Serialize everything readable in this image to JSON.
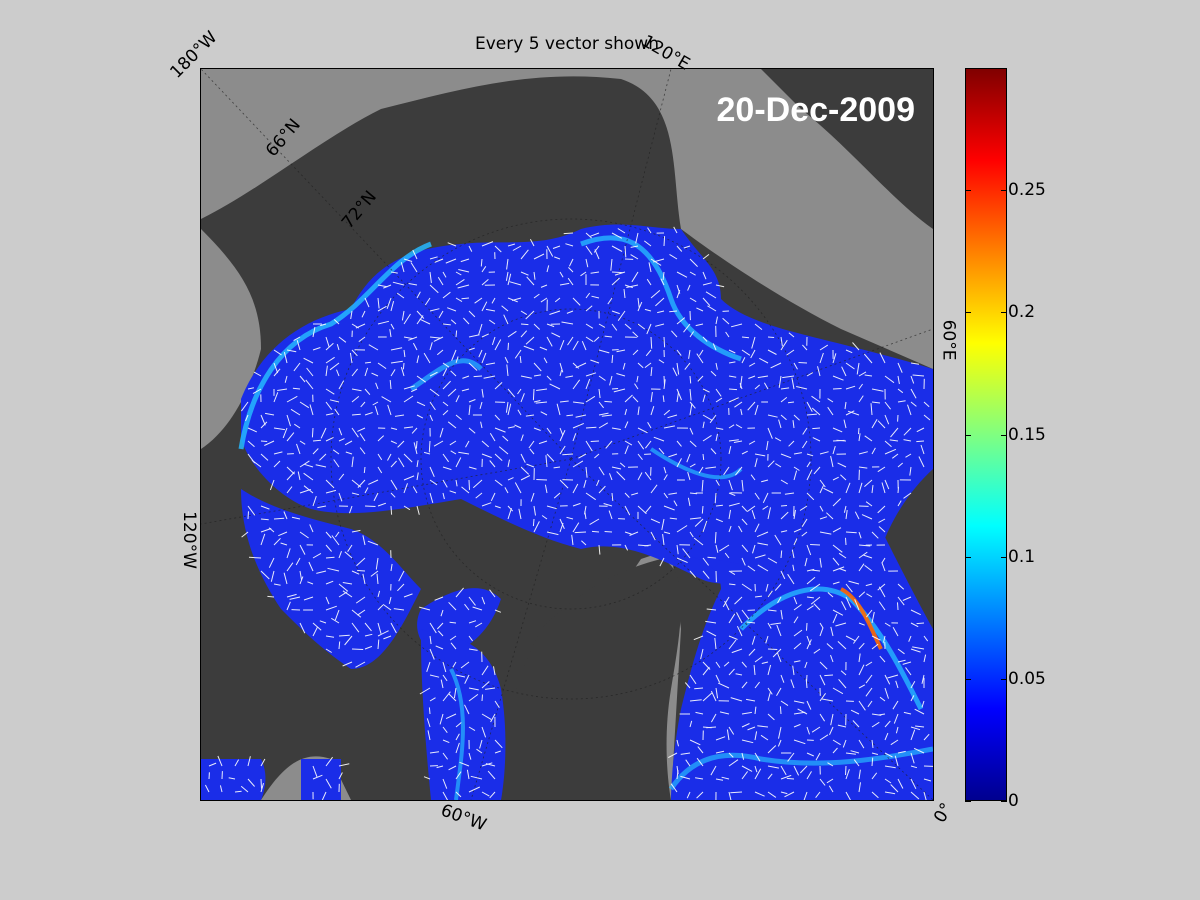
{
  "title": "Every 5 vector shown",
  "date_label": "20-Dec-2009",
  "longitude_labels": {
    "lon_180w": "180°W",
    "lon_120e": "120°E",
    "lon_60e": "60°E",
    "lon_120w": "120°W",
    "lon_60w": "60°W",
    "lon_0": "0°"
  },
  "latitude_labels": {
    "lat_66n": "66°N",
    "lat_72n": "72°N"
  },
  "colorbar": {
    "colormap": "jet",
    "min": 0,
    "max": 0.3,
    "ticks": [
      "0",
      "0.05",
      "0.1",
      "0.15",
      "0.2",
      "0.25"
    ]
  },
  "colors": {
    "land": "#3c3c3c",
    "ice_free_ocean": "#8c8c8c",
    "figure_background": "#cccccc",
    "ice_field": "#1a2de8",
    "vectors": "#ffffff"
  }
}
